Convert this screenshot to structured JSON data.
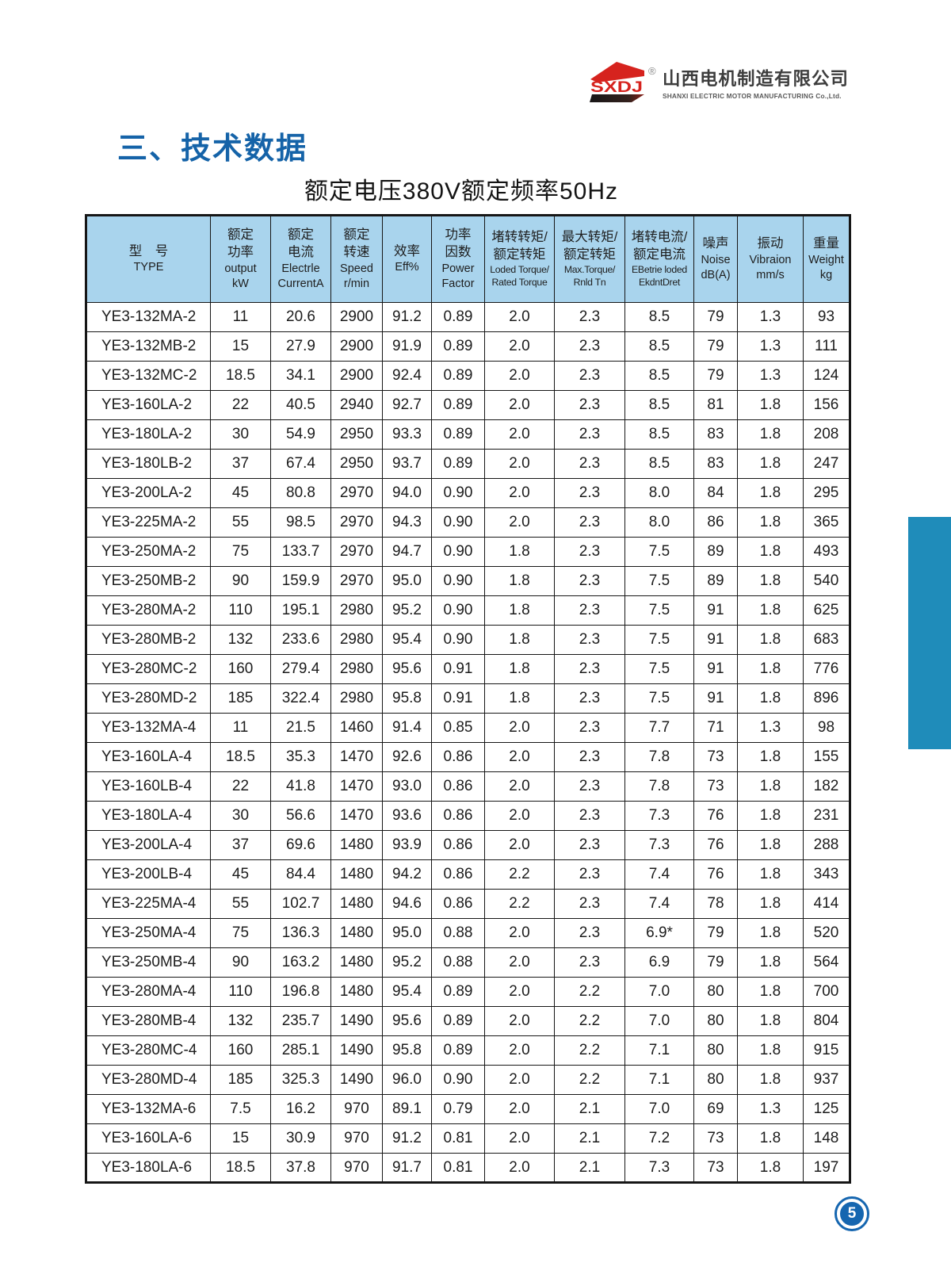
{
  "page": {
    "section_title": "三、技术数据",
    "subtitle": "额定电压380V额定频率50Hz",
    "page_number": "5"
  },
  "logo": {
    "brand": "SXDJ",
    "registered_mark": "®",
    "company_zh": "山西电机制造有限公司",
    "company_en": "SHANXI ELECTRIC MOTOR MANUFACTURING Co.,Ltd."
  },
  "colors": {
    "title_blue": "#1563a8",
    "table_header_bg": "#a9d4ed",
    "brand_red": "#d6231e",
    "side_tab_blue": "#1f8cba",
    "page_badge_blue": "#1566b0"
  },
  "table": {
    "columns": [
      {
        "zh": [
          "型　号"
        ],
        "en": [
          "TYPE"
        ]
      },
      {
        "zh": [
          "额定",
          "功率"
        ],
        "en": [
          "output",
          "kW"
        ]
      },
      {
        "zh": [
          "额定",
          "电流"
        ],
        "en": [
          "Electrle",
          "CurrentA"
        ]
      },
      {
        "zh": [
          "额定",
          "转速"
        ],
        "en": [
          "Speed",
          "r/min"
        ]
      },
      {
        "zh": [
          "效率"
        ],
        "en": [
          "Eff%"
        ]
      },
      {
        "zh": [
          "功率",
          "因数"
        ],
        "en": [
          "Power",
          "Factor"
        ]
      },
      {
        "zh": [
          "堵转转矩/",
          "额定转矩"
        ],
        "en": [
          "Loded Torque/",
          "Rated Torque"
        ]
      },
      {
        "zh": [
          "最大转矩/",
          "额定转矩"
        ],
        "en": [
          "Max.Torque/",
          "Rnld Tn"
        ]
      },
      {
        "zh": [
          "堵转电流/",
          "额定电流"
        ],
        "en": [
          "EBetrie loded",
          "EkdntDret"
        ]
      },
      {
        "zh": [
          "噪声"
        ],
        "en": [
          "Noise",
          "dB(A)"
        ]
      },
      {
        "zh": [
          "振动"
        ],
        "en": [
          "Vibraion",
          "mm/s"
        ]
      },
      {
        "zh": [
          "重量"
        ],
        "en": [
          "Weight",
          "kg"
        ]
      }
    ],
    "rows": [
      [
        "YE3-132MA-2",
        "11",
        "20.6",
        "2900",
        "91.2",
        "0.89",
        "2.0",
        "2.3",
        "8.5",
        "79",
        "1.3",
        "93"
      ],
      [
        "YE3-132MB-2",
        "15",
        "27.9",
        "2900",
        "91.9",
        "0.89",
        "2.0",
        "2.3",
        "8.5",
        "79",
        "1.3",
        "111"
      ],
      [
        "YE3-132MC-2",
        "18.5",
        "34.1",
        "2900",
        "92.4",
        "0.89",
        "2.0",
        "2.3",
        "8.5",
        "79",
        "1.3",
        "124"
      ],
      [
        "YE3-160LA-2",
        "22",
        "40.5",
        "2940",
        "92.7",
        "0.89",
        "2.0",
        "2.3",
        "8.5",
        "81",
        "1.8",
        "156"
      ],
      [
        "YE3-180LA-2",
        "30",
        "54.9",
        "2950",
        "93.3",
        "0.89",
        "2.0",
        "2.3",
        "8.5",
        "83",
        "1.8",
        "208"
      ],
      [
        "YE3-180LB-2",
        "37",
        "67.4",
        "2950",
        "93.7",
        "0.89",
        "2.0",
        "2.3",
        "8.5",
        "83",
        "1.8",
        "247"
      ],
      [
        "YE3-200LA-2",
        "45",
        "80.8",
        "2970",
        "94.0",
        "0.90",
        "2.0",
        "2.3",
        "8.0",
        "84",
        "1.8",
        "295"
      ],
      [
        "YE3-225MA-2",
        "55",
        "98.5",
        "2970",
        "94.3",
        "0.90",
        "2.0",
        "2.3",
        "8.0",
        "86",
        "1.8",
        "365"
      ],
      [
        "YE3-250MA-2",
        "75",
        "133.7",
        "2970",
        "94.7",
        "0.90",
        "1.8",
        "2.3",
        "7.5",
        "89",
        "1.8",
        "493"
      ],
      [
        "YE3-250MB-2",
        "90",
        "159.9",
        "2970",
        "95.0",
        "0.90",
        "1.8",
        "2.3",
        "7.5",
        "89",
        "1.8",
        "540"
      ],
      [
        "YE3-280MA-2",
        "110",
        "195.1",
        "2980",
        "95.2",
        "0.90",
        "1.8",
        "2.3",
        "7.5",
        "91",
        "1.8",
        "625"
      ],
      [
        "YE3-280MB-2",
        "132",
        "233.6",
        "2980",
        "95.4",
        "0.90",
        "1.8",
        "2.3",
        "7.5",
        "91",
        "1.8",
        "683"
      ],
      [
        "YE3-280MC-2",
        "160",
        "279.4",
        "2980",
        "95.6",
        "0.91",
        "1.8",
        "2.3",
        "7.5",
        "91",
        "1.8",
        "776"
      ],
      [
        "YE3-280MD-2",
        "185",
        "322.4",
        "2980",
        "95.8",
        "0.91",
        "1.8",
        "2.3",
        "7.5",
        "91",
        "1.8",
        "896"
      ],
      [
        "YE3-132MA-4",
        "11",
        "21.5",
        "1460",
        "91.4",
        "0.85",
        "2.0",
        "2.3",
        "7.7",
        "71",
        "1.3",
        "98"
      ],
      [
        "YE3-160LA-4",
        "18.5",
        "35.3",
        "1470",
        "92.6",
        "0.86",
        "2.0",
        "2.3",
        "7.8",
        "73",
        "1.8",
        "155"
      ],
      [
        "YE3-160LB-4",
        "22",
        "41.8",
        "1470",
        "93.0",
        "0.86",
        "2.0",
        "2.3",
        "7.8",
        "73",
        "1.8",
        "182"
      ],
      [
        "YE3-180LA-4",
        "30",
        "56.6",
        "1470",
        "93.6",
        "0.86",
        "2.0",
        "2.3",
        "7.3",
        "76",
        "1.8",
        "231"
      ],
      [
        "YE3-200LA-4",
        "37",
        "69.6",
        "1480",
        "93.9",
        "0.86",
        "2.0",
        "2.3",
        "7.3",
        "76",
        "1.8",
        "288"
      ],
      [
        "YE3-200LB-4",
        "45",
        "84.4",
        "1480",
        "94.2",
        "0.86",
        "2.2",
        "2.3",
        "7.4",
        "76",
        "1.8",
        "343"
      ],
      [
        "YE3-225MA-4",
        "55",
        "102.7",
        "1480",
        "94.6",
        "0.86",
        "2.2",
        "2.3",
        "7.4",
        "78",
        "1.8",
        "414"
      ],
      [
        "YE3-250MA-4",
        "75",
        "136.3",
        "1480",
        "95.0",
        "0.88",
        "2.0",
        "2.3",
        "6.9*",
        "79",
        "1.8",
        "520"
      ],
      [
        "YE3-250MB-4",
        "90",
        "163.2",
        "1480",
        "95.2",
        "0.88",
        "2.0",
        "2.3",
        "6.9",
        "79",
        "1.8",
        "564"
      ],
      [
        "YE3-280MA-4",
        "110",
        "196.8",
        "1480",
        "95.4",
        "0.89",
        "2.0",
        "2.2",
        "7.0",
        "80",
        "1.8",
        "700"
      ],
      [
        "YE3-280MB-4",
        "132",
        "235.7",
        "1490",
        "95.6",
        "0.89",
        "2.0",
        "2.2",
        "7.0",
        "80",
        "1.8",
        "804"
      ],
      [
        "YE3-280MC-4",
        "160",
        "285.1",
        "1490",
        "95.8",
        "0.89",
        "2.0",
        "2.2",
        "7.1",
        "80",
        "1.8",
        "915"
      ],
      [
        "YE3-280MD-4",
        "185",
        "325.3",
        "1490",
        "96.0",
        "0.90",
        "2.0",
        "2.2",
        "7.1",
        "80",
        "1.8",
        "937"
      ],
      [
        "YE3-132MA-6",
        "7.5",
        "16.2",
        "970",
        "89.1",
        "0.79",
        "2.0",
        "2.1",
        "7.0",
        "69",
        "1.3",
        "125"
      ],
      [
        "YE3-160LA-6",
        "15",
        "30.9",
        "970",
        "91.2",
        "0.81",
        "2.0",
        "2.1",
        "7.2",
        "73",
        "1.8",
        "148"
      ],
      [
        "YE3-180LA-6",
        "18.5",
        "37.8",
        "970",
        "91.7",
        "0.81",
        "2.0",
        "2.1",
        "7.3",
        "73",
        "1.8",
        "197"
      ]
    ]
  }
}
